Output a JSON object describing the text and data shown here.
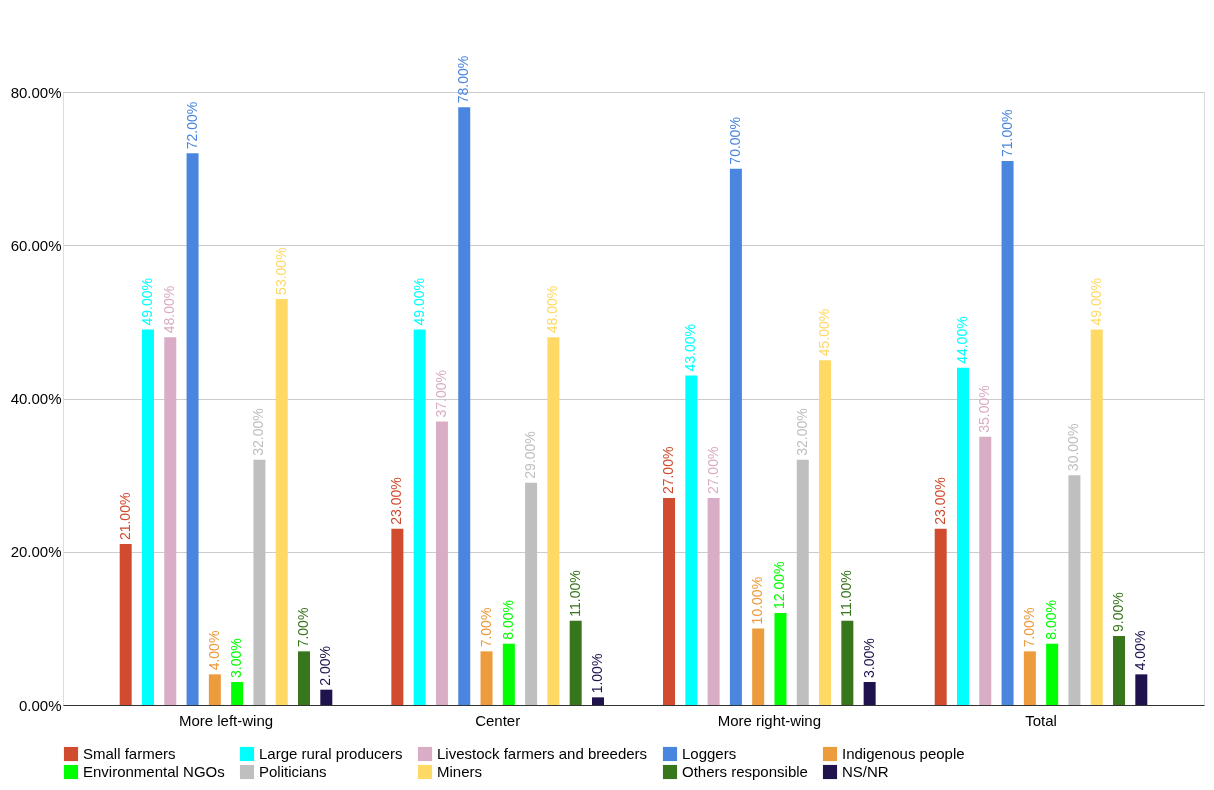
{
  "chart_data": {
    "type": "bar",
    "categories": [
      "More left-wing",
      "Center",
      "More right-wing",
      "Total"
    ],
    "series": [
      {
        "name": "Small farmers",
        "color": "#d14b2f",
        "values": [
          21,
          23,
          27,
          23
        ],
        "value_labels": [
          "21.00%",
          "23.00%",
          "27.00%",
          "23.00%"
        ]
      },
      {
        "name": "Large rural producers",
        "color": "#00ffff",
        "values": [
          49,
          49,
          43,
          44
        ],
        "value_labels": [
          "49.00%",
          "49.00%",
          "43.00%",
          "44.00%"
        ]
      },
      {
        "name": "Livestock farmers and breeders",
        "color": "#d9adc5",
        "values": [
          48,
          37,
          27,
          35
        ],
        "value_labels": [
          "48.00%",
          "37.00%",
          "27.00%",
          "35.00%"
        ]
      },
      {
        "name": "Loggers",
        "color": "#4a86e0",
        "values": [
          72,
          78,
          70,
          71
        ],
        "value_labels": [
          "72.00%",
          "78.00%",
          "70.00%",
          "71.00%"
        ]
      },
      {
        "name": "Indigenous people",
        "color": "#ec9b3d",
        "values": [
          4,
          7,
          10,
          7
        ],
        "value_labels": [
          "4.00%",
          "7.00%",
          "10.00%",
          "7.00%"
        ]
      },
      {
        "name": "Environmental NGOs",
        "color": "#00ff00",
        "values": [
          3,
          8,
          12,
          8
        ],
        "value_labels": [
          "3.00%",
          "8.00%",
          "12.00%",
          "8.00%"
        ]
      },
      {
        "name": "Politicians",
        "color": "#bfbfbf",
        "values": [
          32,
          29,
          32,
          30
        ],
        "value_labels": [
          "32.00%",
          "29.00%",
          "32.00%",
          "30.00%"
        ]
      },
      {
        "name": "Miners",
        "color": "#ffd966",
        "values": [
          53,
          48,
          45,
          49
        ],
        "value_labels": [
          "53.00%",
          "48.00%",
          "45.00%",
          "49.00%"
        ]
      },
      {
        "name": "Others responsible",
        "color": "#38761d",
        "values": [
          7,
          11,
          11,
          9
        ],
        "value_labels": [
          "7.00%",
          "11.00%",
          "11.00%",
          "9.00%"
        ]
      },
      {
        "name": "NS/NR",
        "color": "#20124d",
        "values": [
          2,
          1,
          3,
          4
        ],
        "value_labels": [
          "2.00%",
          "1.00%",
          "3.00%",
          "4.00%"
        ]
      }
    ],
    "ylim": [
      0,
      80
    ],
    "yticks": [
      {
        "value": 0,
        "label": "0.00%"
      },
      {
        "value": 20,
        "label": "20.00%"
      },
      {
        "value": 40,
        "label": "40.00%"
      },
      {
        "value": 60,
        "label": "60.00%"
      },
      {
        "value": 80,
        "label": "80.00%"
      }
    ],
    "grid": "y",
    "legend": "bottom"
  }
}
